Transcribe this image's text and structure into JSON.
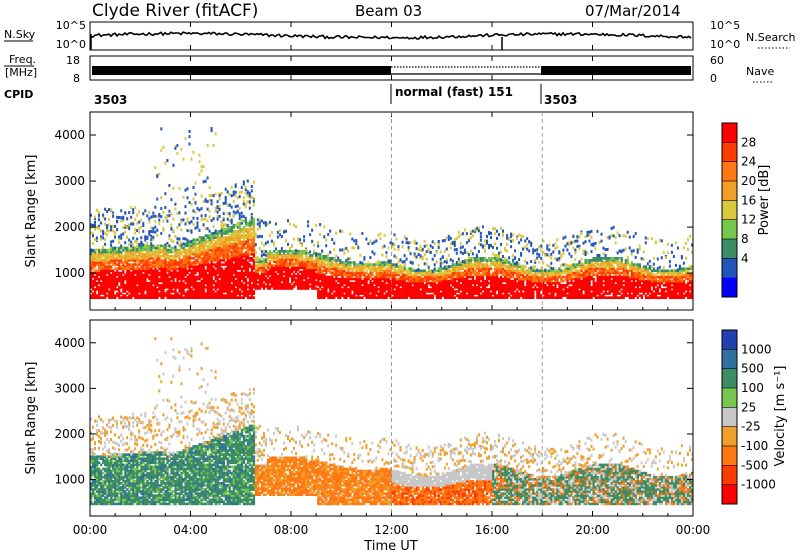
{
  "header": {
    "station": "Clyde River (fitACF)",
    "beam": "Beam 03",
    "date": "07/Mar/2014"
  },
  "top_panels": {
    "nsky_label": "N.Sky",
    "nsky_ticks": [
      "10^5",
      "10^0"
    ],
    "nsearch_label": "N.Search",
    "nsearch_ticks": [
      "10^5",
      "10^0"
    ],
    "freq_label_1": "Freq.",
    "freq_label_2": "[MHz]",
    "freq_ticks": [
      "18",
      "8"
    ],
    "nave_label": "Nave",
    "nave_ticks": [
      "60",
      "0"
    ],
    "cpid_label": "CPID",
    "cpid_segments": [
      {
        "label": "3503",
        "start_hour": 0
      },
      {
        "label": "normal (fast) 151",
        "start_hour": 12
      },
      {
        "label": "3503",
        "start_hour": 18
      }
    ]
  },
  "chart_data": [
    {
      "type": "heatmap",
      "name": "power",
      "ylabel": "Slant Range [km]",
      "xlabel": "",
      "xlim": [
        0,
        24
      ],
      "ylim": [
        200,
        4500
      ],
      "yticks": [
        "1000",
        "2000",
        "3000",
        "4000"
      ],
      "colorbar_label": "Power [dB]",
      "colorbar_ticks": [
        "4",
        "8",
        "12",
        "16",
        "20",
        "24",
        "28"
      ],
      "colorbar_colors": [
        "#0000ff",
        "#2255bb",
        "#3c8c64",
        "#78c850",
        "#dcc83c",
        "#f0a028",
        "#ff7814",
        "#ff3c00",
        "#ff0000"
      ]
    },
    {
      "type": "heatmap",
      "name": "velocity",
      "ylabel": "Slant Range [km]",
      "xlabel": "Time UT",
      "xlim": [
        0,
        24
      ],
      "ylim": [
        200,
        4500
      ],
      "yticks": [
        "1000",
        "2000",
        "3000",
        "4000"
      ],
      "xticks": [
        "00:00",
        "04:00",
        "08:00",
        "12:00",
        "16:00",
        "20:00",
        "00:00"
      ],
      "colorbar_label": "Velocity [m s⁻¹]",
      "colorbar_ticks": [
        "1000",
        "500",
        "100",
        "25",
        "-25",
        "-100",
        "-500",
        "-1000"
      ],
      "colorbar_colors": [
        "#2040b0",
        "#3070a0",
        "#3c8c64",
        "#78c850",
        "#c8c8c8",
        "#f0a028",
        "#ff7814",
        "#ff3c00",
        "#ff0000"
      ]
    }
  ]
}
